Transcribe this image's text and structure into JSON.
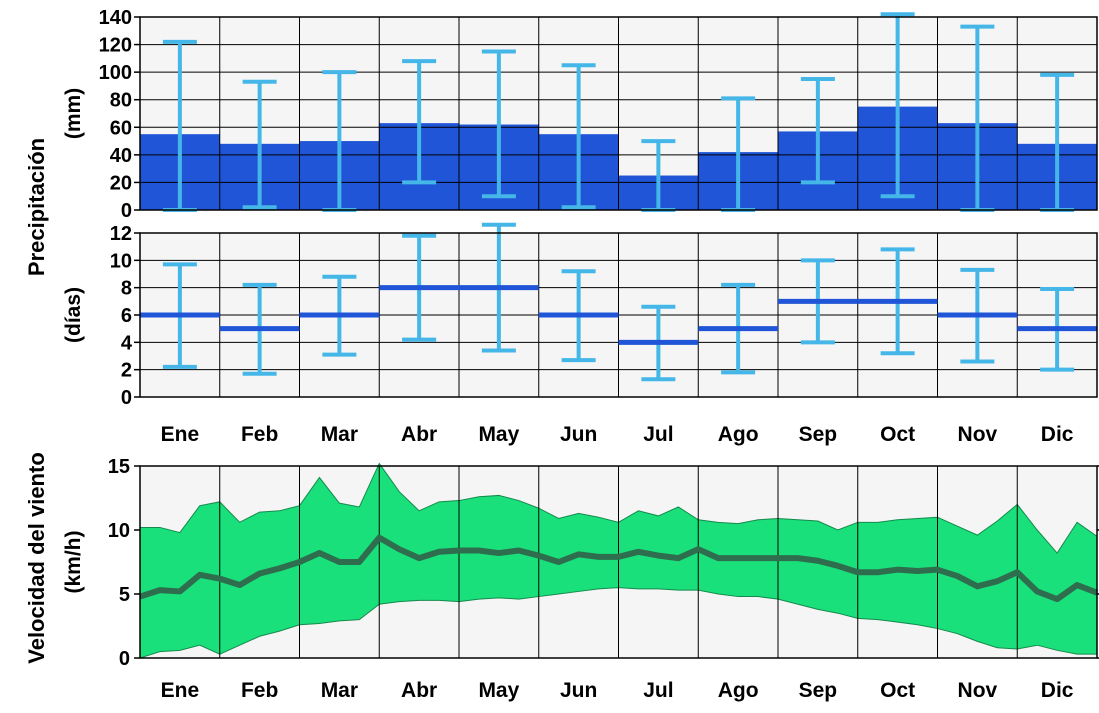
{
  "colors": {
    "background": "#ffffff",
    "plot_background": "#f5f5f5",
    "grid": "#000000",
    "bar": "#1f55d6",
    "errorbar": "#45b6e8",
    "line_days": "#1f55d6",
    "wind_band": "#19e07a",
    "wind_line": "#2e6e4e",
    "text": "#000000"
  },
  "chart_data": [
    {
      "id": "precip_mm",
      "type": "bar",
      "title": "",
      "xlabel": "",
      "ylabel": "(mm)",
      "ylim": [
        0,
        140
      ],
      "yticks": [
        0,
        20,
        40,
        60,
        80,
        100,
        120,
        140
      ],
      "grid": true,
      "categories": [
        "Ene",
        "Feb",
        "Mar",
        "Abr",
        "May",
        "Jun",
        "Jul",
        "Ago",
        "Sep",
        "Oct",
        "Nov",
        "Dic"
      ],
      "values": [
        55,
        48,
        50,
        63,
        62,
        55,
        25,
        42,
        57,
        75,
        63,
        48
      ],
      "error_low": [
        0,
        2,
        0,
        20,
        10,
        2,
        0,
        0,
        20,
        10,
        0,
        0
      ],
      "error_high": [
        122,
        93,
        100,
        108,
        115,
        105,
        50,
        81,
        95,
        142,
        133,
        98
      ]
    },
    {
      "id": "precip_days",
      "type": "line",
      "style": "step",
      "title": "",
      "xlabel": "",
      "ylabel": "(días)",
      "ylim": [
        0,
        12
      ],
      "yticks": [
        0,
        2,
        4,
        6,
        8,
        10,
        12
      ],
      "grid": true,
      "categories": [
        "Ene",
        "Feb",
        "Mar",
        "Abr",
        "May",
        "Jun",
        "Jul",
        "Ago",
        "Sep",
        "Oct",
        "Nov",
        "Dic"
      ],
      "values": [
        6,
        5,
        6,
        8,
        8,
        6,
        4,
        5,
        7,
        7,
        6,
        5
      ],
      "error_low": [
        2.2,
        1.7,
        3.1,
        4.2,
        3.4,
        2.7,
        1.3,
        1.8,
        4,
        3.2,
        2.6,
        2
      ],
      "error_high": [
        9.7,
        8.2,
        8.8,
        11.8,
        12.6,
        9.2,
        6.6,
        8.2,
        10,
        10.8,
        9.3,
        7.9
      ]
    },
    {
      "id": "wind_speed",
      "type": "area",
      "title": "",
      "xlabel": "",
      "ylabel_line1": "Velocidad del viento",
      "ylabel_line2": "(km/h)",
      "ylim": [
        0,
        15
      ],
      "yticks": [
        0,
        5,
        10,
        15
      ],
      "grid": true,
      "months": [
        "Ene",
        "Feb",
        "Mar",
        "Abr",
        "May",
        "Jun",
        "Jul",
        "Ago",
        "Sep",
        "Oct",
        "Nov",
        "Dic"
      ],
      "x": [
        0,
        0.25,
        0.5,
        0.75,
        1,
        1.25,
        1.5,
        1.75,
        2,
        2.25,
        2.5,
        2.75,
        3,
        3.25,
        3.5,
        3.75,
        4,
        4.25,
        4.5,
        4.75,
        5,
        5.25,
        5.5,
        5.75,
        6,
        6.25,
        6.5,
        6.75,
        7,
        7.25,
        7.5,
        7.75,
        8,
        8.25,
        8.5,
        8.75,
        9,
        9.25,
        9.5,
        9.75,
        10,
        10.25,
        10.5,
        10.75,
        11,
        11.25,
        11.5,
        11.75,
        12
      ],
      "mean": [
        4.8,
        5.3,
        5.2,
        6.5,
        6.2,
        5.7,
        6.6,
        7,
        7.5,
        8.2,
        7.5,
        7.5,
        9.4,
        8.5,
        7.8,
        8.3,
        8.4,
        8.4,
        8.2,
        8.4,
        8,
        7.5,
        8.1,
        7.9,
        7.9,
        8.3,
        8,
        7.8,
        8.5,
        7.8,
        7.8,
        7.8,
        7.8,
        7.8,
        7.6,
        7.2,
        6.7,
        6.7,
        6.9,
        6.8,
        6.9,
        6.4,
        5.6,
        6,
        6.7,
        5.2,
        4.6,
        5.7,
        5.1
      ],
      "upper": [
        10.2,
        10.2,
        9.8,
        11.9,
        12.2,
        10.6,
        11.4,
        11.5,
        11.9,
        14.1,
        12.1,
        11.8,
        15.2,
        13,
        11.5,
        12.2,
        12.3,
        12.6,
        12.7,
        12.3,
        11.7,
        10.9,
        11.3,
        11,
        10.6,
        11.5,
        11.1,
        11.8,
        10.8,
        10.6,
        10.5,
        10.8,
        10.9,
        10.8,
        10.7,
        10,
        10.6,
        10.6,
        10.8,
        10.9,
        11,
        10.3,
        9.6,
        10.7,
        12,
        10,
        8.2,
        10.6,
        9.5
      ],
      "lower": [
        0,
        0.5,
        0.6,
        1,
        0.3,
        1,
        1.7,
        2.1,
        2.6,
        2.7,
        2.9,
        3,
        4.2,
        4.4,
        4.5,
        4.5,
        4.4,
        4.6,
        4.7,
        4.6,
        4.8,
        5,
        5.2,
        5.4,
        5.5,
        5.4,
        5.4,
        5.3,
        5.3,
        5,
        4.8,
        4.8,
        4.6,
        4.2,
        3.8,
        3.5,
        3.1,
        3,
        2.8,
        2.6,
        2.3,
        1.9,
        1.3,
        0.8,
        0.7,
        1,
        0.6,
        0.3,
        0.3
      ]
    }
  ],
  "shared": {
    "ylabel_precip": "Precipitación",
    "month_labels": [
      "Ene",
      "Feb",
      "Mar",
      "Abr",
      "May",
      "Jun",
      "Jul",
      "Ago",
      "Sep",
      "Oct",
      "Nov",
      "Dic"
    ]
  }
}
